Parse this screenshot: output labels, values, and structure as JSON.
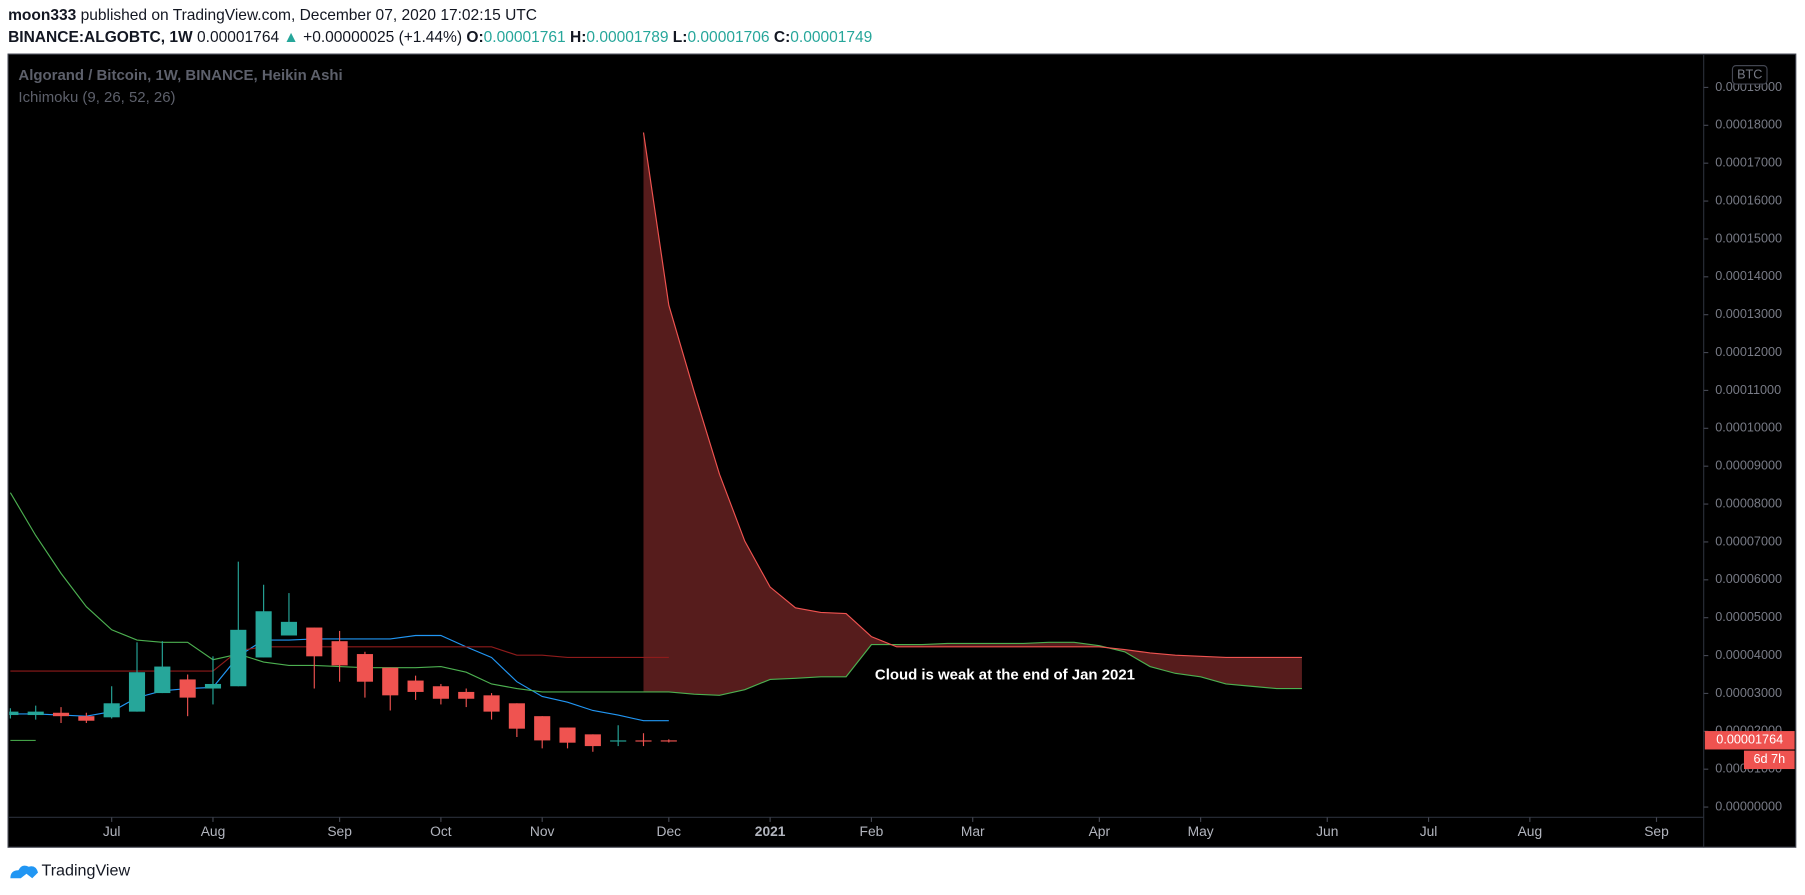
{
  "header": {
    "author": "moon333",
    "published": "published on TradingView.com, December 07, 2020 17:02:15 UTC",
    "symbol": "BINANCE:ALGOBTC, 1W",
    "last": "0.00001764",
    "arrow": "▲",
    "change": "+0.00000025 (+1.44%)",
    "open_label": "O:",
    "open": "0.00001761",
    "high_label": "H:",
    "high": "0.00001789",
    "low_label": "L:",
    "low": "0.00001706",
    "close_label": "C:",
    "close": "0.00001749"
  },
  "chart_data": {
    "type": "candlestick",
    "title": "Algorand / Bitcoin, 1W, BINANCE, Heikin Ashi",
    "indicator": "Ichimoku (9, 26, 52, 26)",
    "currency": "BTC",
    "annotation": "Cloud is weak at the end of Jan 2021",
    "price_label": {
      "value": 1.764e-05,
      "label": "0.00001764"
    },
    "countdown": "6d 7h",
    "grid": false,
    "xlim": [
      0,
      67
    ],
    "xticks": [
      {
        "value": 4,
        "label": "Jul"
      },
      {
        "value": 8,
        "label": "Aug"
      },
      {
        "value": 13,
        "label": "Sep"
      },
      {
        "value": 17,
        "label": "Oct"
      },
      {
        "value": 21,
        "label": "Nov"
      },
      {
        "value": 26,
        "label": "Dec"
      },
      {
        "value": 30,
        "label": "2021"
      },
      {
        "value": 34,
        "label": "Feb"
      },
      {
        "value": 38,
        "label": "Mar"
      },
      {
        "value": 43,
        "label": "Apr"
      },
      {
        "value": 47,
        "label": "May"
      },
      {
        "value": 52,
        "label": "Jun"
      },
      {
        "value": 56,
        "label": "Jul"
      },
      {
        "value": 60,
        "label": "Aug"
      },
      {
        "value": 65,
        "label": "Sep"
      }
    ],
    "ylim": [
      -2.7e-06,
      0.0001988
    ],
    "yticks": [
      {
        "value": 0,
        "label": "0.00000000"
      },
      {
        "value": 1e-05,
        "label": "0.00001000"
      },
      {
        "value": 2e-05,
        "label": "0.00002000"
      },
      {
        "value": 3e-05,
        "label": "0.00003000"
      },
      {
        "value": 4e-05,
        "label": "0.00004000"
      },
      {
        "value": 5e-05,
        "label": "0.00005000"
      },
      {
        "value": 6e-05,
        "label": "0.00006000"
      },
      {
        "value": 7e-05,
        "label": "0.00007000"
      },
      {
        "value": 8e-05,
        "label": "0.00008000"
      },
      {
        "value": 9e-05,
        "label": "0.00009000"
      },
      {
        "value": 0.0001,
        "label": "0.00010000"
      },
      {
        "value": 0.00011,
        "label": "0.00011000"
      },
      {
        "value": 0.00012,
        "label": "0.00012000"
      },
      {
        "value": 0.00013,
        "label": "0.00013000"
      },
      {
        "value": 0.00014,
        "label": "0.00014000"
      },
      {
        "value": 0.00015,
        "label": "0.00015000"
      },
      {
        "value": 0.00016,
        "label": "0.00016000"
      },
      {
        "value": 0.00017,
        "label": "0.00017000"
      },
      {
        "value": 0.00018,
        "label": "0.00018000"
      },
      {
        "value": 0.00019,
        "label": "0.00019000"
      }
    ],
    "candles": {
      "up_color": "#26a69a",
      "down_color": "#ef5350",
      "x": [
        0,
        1,
        2,
        3,
        4,
        5,
        6,
        7,
        8,
        9,
        10,
        11,
        12,
        13,
        14,
        15,
        16,
        17,
        18,
        19,
        20,
        21,
        22,
        23,
        24,
        25,
        26
      ],
      "open": [
        2.43e-05,
        2.43e-05,
        2.49e-05,
        2.4e-05,
        2.37e-05,
        2.52e-05,
        3.01e-05,
        3.37e-05,
        3.13e-05,
        3.19e-05,
        3.95e-05,
        4.53e-05,
        4.74e-05,
        4.38e-05,
        4.04e-05,
        3.68e-05,
        3.34e-05,
        3.19e-05,
        3.04e-05,
        2.95e-05,
        2.74e-05,
        2.4e-05,
        2.1e-05,
        1.92e-05,
        1.73e-05,
        1.76e-05,
        1.761e-05
      ],
      "high": [
        2.61e-05,
        2.68e-05,
        2.64e-05,
        2.49e-05,
        3.19e-05,
        4.35e-05,
        4.38e-05,
        3.5e-05,
        3.98e-05,
        6.48e-05,
        5.87e-05,
        5.65e-05,
        4.74e-05,
        4.65e-05,
        4.1e-05,
        3.68e-05,
        3.47e-05,
        3.25e-05,
        3.13e-05,
        3.01e-05,
        2.74e-05,
        2.4e-05,
        2.1e-05,
        1.92e-05,
        2.16e-05,
        1.95e-05,
        1.789e-05
      ],
      "low": [
        2.34e-05,
        2.31e-05,
        2.22e-05,
        2.22e-05,
        2.34e-05,
        2.52e-05,
        3.01e-05,
        2.4e-05,
        2.71e-05,
        3.19e-05,
        3.95e-05,
        4.53e-05,
        3.13e-05,
        3.31e-05,
        2.89e-05,
        2.55e-05,
        2.83e-05,
        2.71e-05,
        2.64e-05,
        2.31e-05,
        1.85e-05,
        1.55e-05,
        1.55e-05,
        1.46e-05,
        1.61e-05,
        1.61e-05,
        1.706e-05
      ],
      "close": [
        2.52e-05,
        2.52e-05,
        2.4e-05,
        2.28e-05,
        2.74e-05,
        3.56e-05,
        3.71e-05,
        2.89e-05,
        3.25e-05,
        4.68e-05,
        5.17e-05,
        4.89e-05,
        3.98e-05,
        3.74e-05,
        3.31e-05,
        2.95e-05,
        3.04e-05,
        2.86e-05,
        2.86e-05,
        2.52e-05,
        2.07e-05,
        1.76e-05,
        1.7e-05,
        1.61e-05,
        1.76e-05,
        1.73e-05,
        1.749e-05
      ]
    },
    "ichimoku": {
      "cloud_color": "#561c1c",
      "x": [
        0,
        1,
        2,
        3,
        4,
        5,
        6,
        7,
        8,
        9,
        10,
        11,
        12,
        13,
        14,
        15,
        16,
        17,
        18,
        19,
        20,
        21,
        22,
        23,
        24,
        25,
        26,
        27,
        28,
        29,
        30,
        31,
        32,
        33,
        34,
        35,
        36,
        37,
        38,
        39,
        40,
        41,
        42,
        43,
        44,
        45,
        46,
        47,
        48,
        49,
        50,
        51
      ],
      "series": [
        {
          "color": "#2196f3",
          "values": [
            2.46e-05,
            2.46e-05,
            2.43e-05,
            2.4e-05,
            2.52e-05,
            2.89e-05,
            3.07e-05,
            3.13e-05,
            3.16e-05,
            3.98e-05,
            4.41e-05,
            4.41e-05,
            4.44e-05,
            4.44e-05,
            4.44e-05,
            4.44e-05,
            4.53e-05,
            4.53e-05,
            4.23e-05,
            3.95e-05,
            3.31e-05,
            2.92e-05,
            2.77e-05,
            2.55e-05,
            2.43e-05,
            2.28e-05,
            2.28e-05,
            null,
            null,
            null,
            null,
            null,
            null,
            null,
            null,
            null,
            null,
            null,
            null,
            null,
            null,
            null,
            null,
            null,
            null,
            null,
            null,
            null,
            null,
            null,
            null,
            null
          ]
        },
        {
          "color": "#8e1b1b",
          "values": [
            3.59e-05,
            3.59e-05,
            3.59e-05,
            3.59e-05,
            3.59e-05,
            3.59e-05,
            3.59e-05,
            3.59e-05,
            3.59e-05,
            4.13e-05,
            4.23e-05,
            4.23e-05,
            4.23e-05,
            4.23e-05,
            4.23e-05,
            4.23e-05,
            4.23e-05,
            4.23e-05,
            4.23e-05,
            4.23e-05,
            4.01e-05,
            4.01e-05,
            3.95e-05,
            3.95e-05,
            3.95e-05,
            3.95e-05,
            3.95e-05,
            null,
            null,
            null,
            null,
            null,
            null,
            null,
            null,
            null,
            null,
            null,
            null,
            null,
            null,
            null,
            null,
            null,
            null,
            null,
            null,
            null,
            null,
            null,
            null,
            null
          ]
        },
        {
          "color": "#43a047",
          "values": [
            1.76e-05,
            1.76e-05,
            null,
            null,
            null,
            null,
            null,
            null,
            null,
            null,
            null,
            null,
            null,
            null,
            null,
            null,
            null,
            null,
            null,
            null,
            null,
            null,
            null,
            null,
            null,
            null,
            null,
            null,
            null,
            null,
            null,
            null,
            null,
            null,
            null,
            null,
            null,
            null,
            null,
            null,
            null,
            null,
            null,
            null,
            null,
            null,
            null,
            null,
            null,
            null,
            null,
            null
          ]
        },
        {
          "color": "#4caf50",
          "values": [
            8.3e-05,
            7.17e-05,
            6.17e-05,
            5.29e-05,
            4.68e-05,
            4.41e-05,
            4.35e-05,
            4.35e-05,
            3.89e-05,
            4.04e-05,
            3.83e-05,
            3.74e-05,
            3.74e-05,
            3.71e-05,
            3.68e-05,
            3.68e-05,
            3.68e-05,
            3.71e-05,
            3.56e-05,
            3.25e-05,
            3.13e-05,
            3.04e-05,
            3.04e-05,
            3.04e-05,
            3.04e-05,
            3.04e-05,
            3.04e-05,
            2.98e-05,
            2.95e-05,
            3.1e-05,
            3.37e-05,
            3.4e-05,
            3.44e-05,
            3.44e-05,
            4.29e-05,
            4.29e-05,
            4.29e-05,
            4.32e-05,
            4.32e-05,
            4.32e-05,
            4.32e-05,
            4.35e-05,
            4.35e-05,
            4.26e-05,
            4.1e-05,
            3.71e-05,
            3.53e-05,
            3.44e-05,
            3.25e-05,
            3.19e-05,
            3.13e-05,
            3.13e-05
          ]
        },
        {
          "color": "#ef5350",
          "values": [
            null,
            null,
            null,
            null,
            null,
            null,
            null,
            null,
            null,
            null,
            null,
            null,
            null,
            null,
            null,
            null,
            null,
            null,
            null,
            null,
            null,
            null,
            null,
            null,
            null,
            0.0001781,
            0.0001325,
            0.0001097,
            8.79e-05,
            7.02e-05,
            5.81e-05,
            5.26e-05,
            5.14e-05,
            5.11e-05,
            4.5e-05,
            4.23e-05,
            4.23e-05,
            4.23e-05,
            4.23e-05,
            4.23e-05,
            4.23e-05,
            4.23e-05,
            4.23e-05,
            4.23e-05,
            4.16e-05,
            4.07e-05,
            4.01e-05,
            3.98e-05,
            3.95e-05,
            3.95e-05,
            3.95e-05,
            3.95e-05
          ]
        }
      ]
    }
  },
  "footer": {
    "brand": "TradingView"
  }
}
